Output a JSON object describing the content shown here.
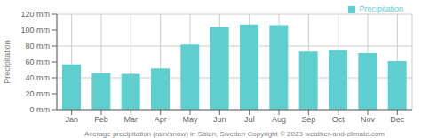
{
  "chart_data": {
    "type": "bar",
    "xlabel": "Average precipitation (rain/snow) in Sälen, Sweden   Copyright © 2023  weather-and-climate.com",
    "ylabel": "Precipitation",
    "categories": [
      "Jan",
      "Feb",
      "Mar",
      "Apr",
      "May",
      "Jun",
      "Jul",
      "Aug",
      "Sep",
      "Oct",
      "Nov",
      "Dec"
    ],
    "series": [
      {
        "name": "Precipitation",
        "color": "#5ecece",
        "values": [
          57,
          46,
          45,
          52,
          82,
          104,
          107,
          106,
          73,
          75,
          71,
          61
        ]
      }
    ],
    "ylim": [
      0,
      120
    ],
    "yticks": [
      {
        "value": 0,
        "label": "0 mm"
      },
      {
        "value": 20,
        "label": "20 mm"
      },
      {
        "value": 40,
        "label": "40 mm"
      },
      {
        "value": 60,
        "label": "60 mm"
      },
      {
        "value": 80,
        "label": "80 mm"
      },
      {
        "value": 100,
        "label": "100 mm"
      },
      {
        "value": 120,
        "label": "120 mm"
      }
    ],
    "grid": true,
    "legend": "upper right"
  }
}
